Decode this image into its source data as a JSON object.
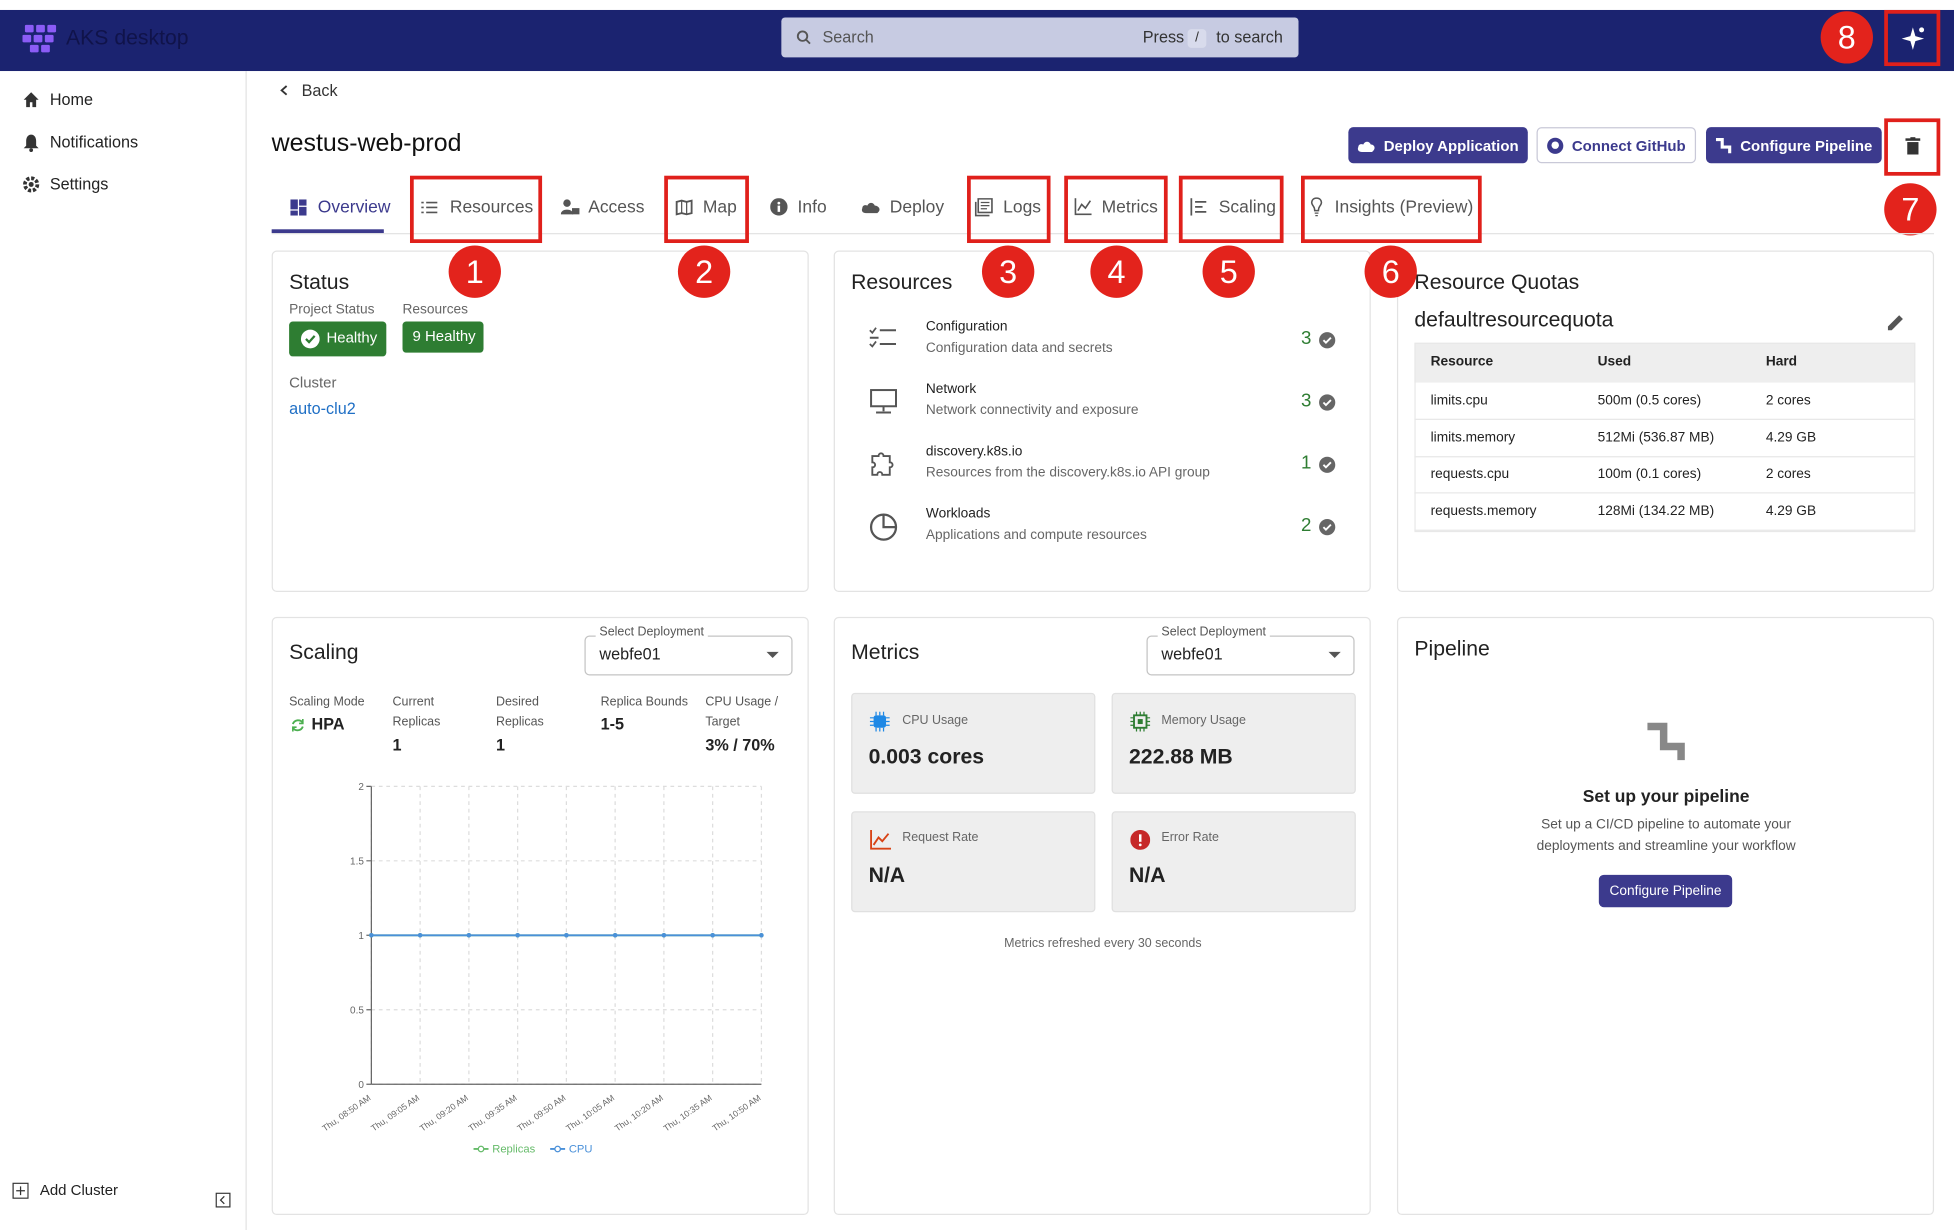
{
  "app": {
    "brand": "AKS desktop",
    "search_placeholder": "Search",
    "search_press": "Press",
    "search_key": "/",
    "search_suffix": "to search"
  },
  "sidebar": {
    "items": [
      "Home",
      "Notifications",
      "Settings"
    ],
    "add_cluster": "Add Cluster"
  },
  "header": {
    "back": "Back",
    "title": "westus-web-prod",
    "buttons": [
      "Deploy Application",
      "Connect GitHub",
      "Configure Pipeline"
    ]
  },
  "tabs": [
    "Overview",
    "Resources",
    "Access",
    "Map",
    "Info",
    "Deploy",
    "Logs",
    "Metrics",
    "Scaling",
    "Insights (Preview)"
  ],
  "annotations": [
    "1",
    "2",
    "3",
    "4",
    "5",
    "6",
    "7",
    "8"
  ],
  "status": {
    "title": "Status",
    "project_status_label": "Project Status",
    "project_status": "Healthy",
    "resources_label": "Resources",
    "resources_status": "9 Healthy",
    "cluster_label": "Cluster",
    "cluster": "auto-clu2"
  },
  "resources": {
    "title": "Resources",
    "items": [
      {
        "name": "Configuration",
        "description": "Configuration data and secrets",
        "count": 3
      },
      {
        "name": "Network",
        "description": "Network connectivity and exposure",
        "count": 3
      },
      {
        "name": "discovery.k8s.io",
        "description": "Resources from the discovery.k8s.io API group",
        "count": 1
      },
      {
        "name": "Workloads",
        "description": "Applications and compute resources",
        "count": 2
      }
    ]
  },
  "quotas": {
    "title": "Resource Quotas",
    "name": "defaultresourcequota",
    "columns": [
      "Resource",
      "Used",
      "Hard"
    ],
    "rows": [
      [
        "limits.cpu",
        "500m (0.5 cores)",
        "2 cores"
      ],
      [
        "limits.memory",
        "512Mi (536.87 MB)",
        "4.29 GB"
      ],
      [
        "requests.cpu",
        "100m (0.1 cores)",
        "2 cores"
      ],
      [
        "requests.memory",
        "128Mi (134.22 MB)",
        "4.29 GB"
      ]
    ]
  },
  "scaling": {
    "title": "Scaling",
    "select_label": "Select Deployment",
    "select_value": "webfe01",
    "fields": [
      {
        "label": "Scaling Mode",
        "value": "HPA"
      },
      {
        "label": "Current Replicas",
        "value": 1
      },
      {
        "label": "Desired Replicas",
        "value": 1
      },
      {
        "label": "Replica Bounds",
        "value": "1-5"
      },
      {
        "label": "CPU Usage / Target",
        "value": "3% / 70%"
      }
    ]
  },
  "chart_data": {
    "type": "line",
    "categories": [
      "Thu, 08:50 AM",
      "Thu, 09:05 AM",
      "Thu, 09:20 AM",
      "Thu, 09:35 AM",
      "Thu, 09:50 AM",
      "Thu, 10:05 AM",
      "Thu, 10:20 AM",
      "Thu, 10:35 AM",
      "Thu, 10:50 AM"
    ],
    "series": [
      {
        "name": "Replicas",
        "color": "#66bb6a",
        "values": [
          1,
          1,
          1,
          1,
          1,
          1,
          1,
          1,
          1
        ]
      },
      {
        "name": "CPU",
        "color": "#4a90d9",
        "values": [
          1,
          1,
          1,
          1,
          1,
          1,
          1,
          1,
          1
        ]
      }
    ],
    "ylim": [
      0,
      2
    ],
    "yticks": [
      0,
      0.5,
      1,
      1.5,
      2
    ],
    "grid": true,
    "legend": "bottom"
  },
  "metrics": {
    "title": "Metrics",
    "select_label": "Select Deployment",
    "select_value": "webfe01",
    "tiles": [
      {
        "label": "CPU Usage",
        "value": "0.003 cores"
      },
      {
        "label": "Memory Usage",
        "value": "222.88 MB"
      },
      {
        "label": "Request Rate",
        "value": "N/A"
      },
      {
        "label": "Error Rate",
        "value": "N/A"
      }
    ],
    "footnote": "Metrics refreshed every 30 seconds"
  },
  "pipeline": {
    "title": "Pipeline",
    "heading": "Set up your pipeline",
    "description": "Set up a CI/CD pipeline to automate your deployments and streamline your workflow",
    "button": "Configure Pipeline"
  }
}
